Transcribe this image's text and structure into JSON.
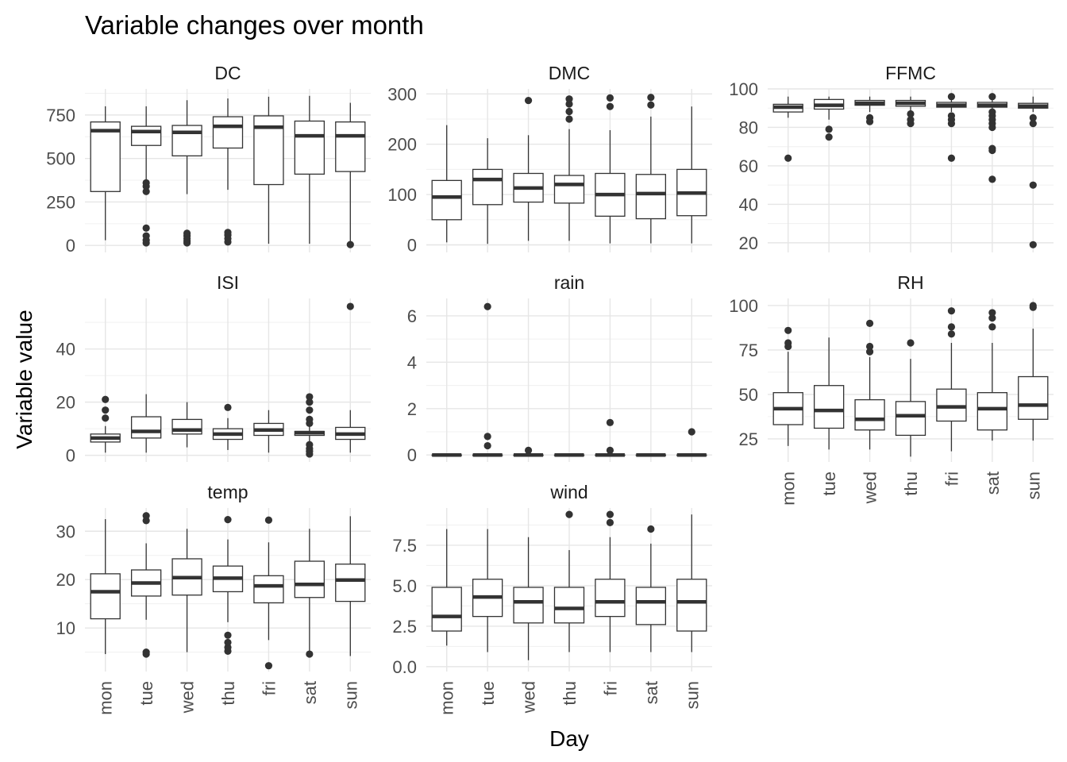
{
  "chart_data": {
    "type": "boxplot",
    "title": "Variable changes over month",
    "xlabel": "Day",
    "ylabel": "Variable value",
    "categories": [
      "mon",
      "tue",
      "wed",
      "thu",
      "fri",
      "sat",
      "sun"
    ],
    "grid": true,
    "panels": [
      {
        "name": "DC",
        "ylim": [
          -40,
          900
        ],
        "yticks": [
          0,
          250,
          500,
          750
        ],
        "minor_yticks": [
          125,
          375,
          625,
          875
        ],
        "boxes": [
          {
            "min": 30,
            "q1": 310,
            "median": 660,
            "q3": 710,
            "max": 800,
            "outliers": []
          },
          {
            "min": 320,
            "q1": 575,
            "median": 655,
            "q3": 685,
            "max": 800,
            "outliers": [
              15,
              30,
              55,
              100,
              310,
              340,
              360
            ]
          },
          {
            "min": 295,
            "q1": 515,
            "median": 650,
            "q3": 690,
            "max": 835,
            "outliers": [
              15,
              25,
              40,
              55,
              70
            ]
          },
          {
            "min": 320,
            "q1": 560,
            "median": 685,
            "q3": 740,
            "max": 845,
            "outliers": [
              20,
              40,
              60,
              75
            ]
          },
          {
            "min": 10,
            "q1": 350,
            "median": 680,
            "q3": 745,
            "max": 855,
            "outliers": []
          },
          {
            "min": 10,
            "q1": 410,
            "median": 630,
            "q3": 715,
            "max": 860,
            "outliers": []
          },
          {
            "min": 15,
            "q1": 425,
            "median": 630,
            "q3": 710,
            "max": 820,
            "outliers": [
              5
            ]
          }
        ]
      },
      {
        "name": "DMC",
        "ylim": [
          -15,
          310
        ],
        "yticks": [
          0,
          100,
          200,
          300
        ],
        "minor_yticks": [
          50,
          150,
          250
        ],
        "boxes": [
          {
            "min": 5,
            "q1": 50,
            "median": 95,
            "q3": 128,
            "max": 238,
            "outliers": []
          },
          {
            "min": 2,
            "q1": 80,
            "median": 130,
            "q3": 150,
            "max": 212,
            "outliers": []
          },
          {
            "min": 8,
            "q1": 85,
            "median": 113,
            "q3": 142,
            "max": 218,
            "outliers": [
              287
            ]
          },
          {
            "min": 8,
            "q1": 83,
            "median": 120,
            "q3": 138,
            "max": 230,
            "outliers": [
              250,
              265,
              280,
              290
            ]
          },
          {
            "min": 3,
            "q1": 57,
            "median": 100,
            "q3": 142,
            "max": 228,
            "outliers": [
              275,
              292
            ]
          },
          {
            "min": 3,
            "q1": 52,
            "median": 102,
            "q3": 140,
            "max": 255,
            "outliers": [
              278,
              293
            ]
          },
          {
            "min": 3,
            "q1": 58,
            "median": 103,
            "q3": 150,
            "max": 275,
            "outliers": []
          }
        ]
      },
      {
        "name": "FFMC",
        "ylim": [
          15,
          100
        ],
        "yticks": [
          20,
          40,
          60,
          80,
          100
        ],
        "minor_yticks": [
          30,
          50,
          70,
          90
        ],
        "boxes": [
          {
            "min": 85,
            "q1": 88,
            "median": 90.5,
            "q3": 92,
            "max": 96,
            "outliers": [
              64
            ]
          },
          {
            "min": 84,
            "q1": 89.5,
            "median": 91.5,
            "q3": 94.5,
            "max": 96,
            "outliers": [
              75,
              79
            ]
          },
          {
            "min": 88,
            "q1": 91.5,
            "median": 92.5,
            "q3": 94,
            "max": 96,
            "outliers": [
              83,
              85
            ]
          },
          {
            "min": 88,
            "q1": 91,
            "median": 92.5,
            "q3": 94,
            "max": 96,
            "outliers": [
              82,
              84,
              87
            ]
          },
          {
            "min": 88,
            "q1": 90.5,
            "median": 91.5,
            "q3": 93,
            "max": 96,
            "outliers": [
              64,
              82,
              84,
              86,
              96
            ]
          },
          {
            "min": 88,
            "q1": 90.5,
            "median": 91.5,
            "q3": 93,
            "max": 96,
            "outliers": [
              53,
              68,
              69,
              80,
              82,
              84,
              86,
              88,
              96
            ]
          },
          {
            "min": 88,
            "q1": 90,
            "median": 91,
            "q3": 92.5,
            "max": 96,
            "outliers": [
              19,
              50,
              82,
              85
            ]
          }
        ]
      },
      {
        "name": "ISI",
        "ylim": [
          -2.5,
          59
        ],
        "yticks": [
          0,
          20,
          40
        ],
        "minor_yticks": [
          10,
          30,
          50
        ],
        "boxes": [
          {
            "min": 1,
            "q1": 5,
            "median": 6.5,
            "q3": 8,
            "max": 11,
            "outliers": [
              14,
              17,
              21
            ]
          },
          {
            "min": 1,
            "q1": 6.5,
            "median": 9,
            "q3": 14.5,
            "max": 23,
            "outliers": []
          },
          {
            "min": 3,
            "q1": 8,
            "median": 9.5,
            "q3": 13.5,
            "max": 20,
            "outliers": []
          },
          {
            "min": 2,
            "q1": 6,
            "median": 8,
            "q3": 10,
            "max": 14,
            "outliers": [
              18
            ]
          },
          {
            "min": 1,
            "q1": 7.5,
            "median": 9.5,
            "q3": 12,
            "max": 17,
            "outliers": []
          },
          {
            "min": 5,
            "q1": 7.5,
            "median": 8.5,
            "q3": 9,
            "max": 11,
            "outliers": [
              0.5,
              1.5,
              2.5,
              4,
              12,
              13.5,
              17,
              20,
              22
            ]
          },
          {
            "min": 1,
            "q1": 6,
            "median": 8,
            "q3": 10.5,
            "max": 17,
            "outliers": [
              56
            ]
          }
        ]
      },
      {
        "name": "rain",
        "ylim": [
          -0.3,
          6.75
        ],
        "yticks": [
          0,
          2,
          4,
          6
        ],
        "minor_yticks": [
          1,
          3,
          5
        ],
        "boxes": [
          {
            "min": 0,
            "q1": 0,
            "median": 0,
            "q3": 0,
            "max": 0,
            "outliers": []
          },
          {
            "min": 0,
            "q1": 0,
            "median": 0,
            "q3": 0,
            "max": 0,
            "outliers": [
              0.4,
              0.8,
              6.4
            ]
          },
          {
            "min": 0,
            "q1": 0,
            "median": 0,
            "q3": 0,
            "max": 0,
            "outliers": [
              0.2
            ]
          },
          {
            "min": 0,
            "q1": 0,
            "median": 0,
            "q3": 0,
            "max": 0,
            "outliers": []
          },
          {
            "min": 0,
            "q1": 0,
            "median": 0,
            "q3": 0,
            "max": 0,
            "outliers": [
              0.2,
              1.4
            ]
          },
          {
            "min": 0,
            "q1": 0,
            "median": 0,
            "q3": 0,
            "max": 0,
            "outliers": []
          },
          {
            "min": 0,
            "q1": 0,
            "median": 0,
            "q3": 0,
            "max": 0,
            "outliers": [
              1.0
            ]
          }
        ]
      },
      {
        "name": "RH",
        "ylim": [
          12,
          104
        ],
        "yticks": [
          25,
          50,
          75,
          100
        ],
        "minor_yticks": [
          37.5,
          62.5,
          87.5
        ],
        "boxes": [
          {
            "min": 21,
            "q1": 33,
            "median": 42,
            "q3": 51,
            "max": 74,
            "outliers": [
              77,
              79,
              86
            ]
          },
          {
            "min": 19,
            "q1": 31,
            "median": 41,
            "q3": 55,
            "max": 82,
            "outliers": []
          },
          {
            "min": 19,
            "q1": 30,
            "median": 36,
            "q3": 47,
            "max": 71,
            "outliers": [
              74,
              77,
              90
            ]
          },
          {
            "min": 15,
            "q1": 27,
            "median": 38,
            "q3": 46,
            "max": 70,
            "outliers": [
              79
            ]
          },
          {
            "min": 18,
            "q1": 35,
            "median": 43,
            "q3": 53,
            "max": 79,
            "outliers": [
              84,
              88,
              97
            ]
          },
          {
            "min": 24,
            "q1": 30,
            "median": 42,
            "q3": 51,
            "max": 79,
            "outliers": [
              88,
              93,
              96
            ]
          },
          {
            "min": 24,
            "q1": 36,
            "median": 44,
            "q3": 60,
            "max": 87,
            "outliers": [
              99,
              100
            ]
          }
        ]
      },
      {
        "name": "temp",
        "ylim": [
          1,
          34.8
        ],
        "yticks": [
          10,
          20,
          30
        ],
        "minor_yticks": [
          5,
          15,
          25
        ],
        "boxes": [
          {
            "min": 4.6,
            "q1": 11.9,
            "median": 17.5,
            "q3": 21.2,
            "max": 32.5,
            "outliers": []
          },
          {
            "min": 11.7,
            "q1": 16.6,
            "median": 19.3,
            "q3": 22,
            "max": 27.5,
            "outliers": [
              4.6,
              5.0,
              32.2,
              33.2
            ]
          },
          {
            "min": 5,
            "q1": 16.8,
            "median": 20.4,
            "q3": 24.3,
            "max": 30.5,
            "outliers": []
          },
          {
            "min": 11.2,
            "q1": 17.5,
            "median": 20.3,
            "q3": 22.8,
            "max": 28.3,
            "outliers": [
              5.2,
              6.0,
              7.0,
              8.5,
              32.4
            ]
          },
          {
            "min": 7.5,
            "q1": 15.2,
            "median": 18.7,
            "q3": 20.8,
            "max": 27.7,
            "outliers": [
              2.2,
              32.3
            ]
          },
          {
            "min": 5,
            "q1": 16.3,
            "median": 19,
            "q3": 23.8,
            "max": 30.5,
            "outliers": [
              4.6
            ]
          },
          {
            "min": 4.2,
            "q1": 15.5,
            "median": 19.9,
            "q3": 23.2,
            "max": 33.1,
            "outliers": []
          }
        ]
      },
      {
        "name": "wind",
        "ylim": [
          -0.3,
          9.8
        ],
        "yticks": [
          0.0,
          2.5,
          5.0,
          7.5
        ],
        "ytick_labels": [
          "0.0",
          "2.5",
          "5.0",
          "7.5"
        ],
        "minor_yticks": [
          1.25,
          3.75,
          6.25,
          8.75
        ],
        "boxes": [
          {
            "min": 1.3,
            "q1": 2.2,
            "median": 3.1,
            "q3": 4.9,
            "max": 8.5,
            "outliers": []
          },
          {
            "min": 0.9,
            "q1": 3.1,
            "median": 4.3,
            "q3": 5.4,
            "max": 8.5,
            "outliers": []
          },
          {
            "min": 0.4,
            "q1": 2.7,
            "median": 4.0,
            "q3": 4.9,
            "max": 8.0,
            "outliers": []
          },
          {
            "min": 0.9,
            "q1": 2.7,
            "median": 3.6,
            "q3": 4.9,
            "max": 7.2,
            "outliers": [
              9.4
            ]
          },
          {
            "min": 0.9,
            "q1": 3.1,
            "median": 4.0,
            "q3": 5.4,
            "max": 8.0,
            "outliers": [
              8.9,
              9.4
            ]
          },
          {
            "min": 0.9,
            "q1": 2.6,
            "median": 4.0,
            "q3": 4.9,
            "max": 7.6,
            "outliers": [
              8.5
            ]
          },
          {
            "min": 0.9,
            "q1": 2.2,
            "median": 4.0,
            "q3": 5.4,
            "max": 9.4,
            "outliers": []
          }
        ]
      }
    ]
  }
}
